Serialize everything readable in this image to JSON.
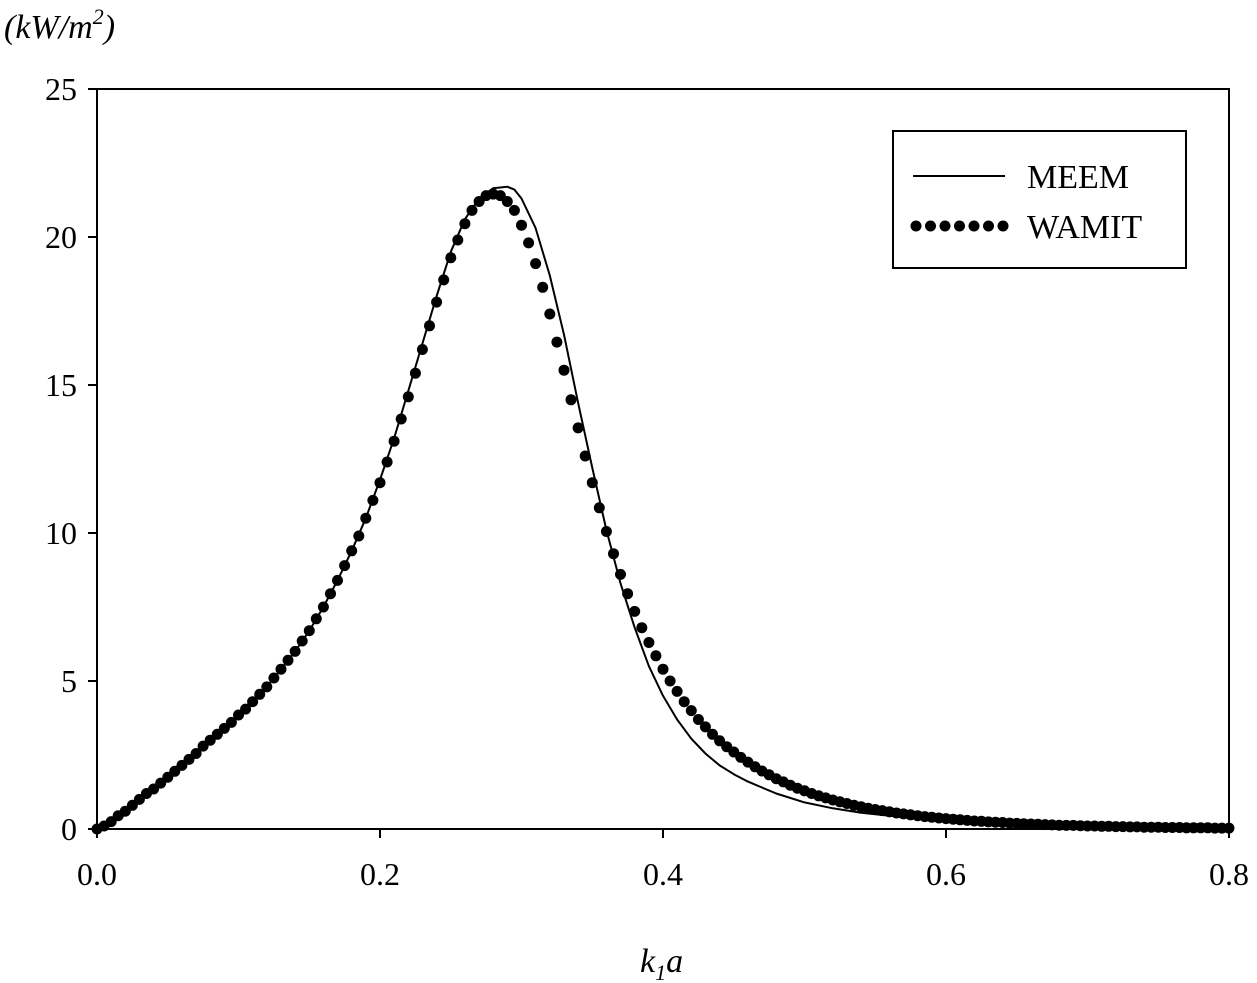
{
  "chart_data": {
    "type": "line",
    "xlabel": {
      "base": "k",
      "sub": "1",
      "tail": "a"
    },
    "ylabel": {
      "text": "(kW/m",
      "sup": "2",
      "close": ")"
    },
    "xlim": [
      0.0,
      0.8
    ],
    "ylim": [
      0,
      25
    ],
    "xticks": [
      "0.0",
      "0.2",
      "0.4",
      "0.6",
      "0.8"
    ],
    "yticks": [
      "0",
      "5",
      "10",
      "15",
      "20",
      "25"
    ],
    "grid": false,
    "legend_position": "top-right",
    "series": [
      {
        "name": "MEEM",
        "style": "solid-line",
        "x": [
          0.0,
          0.01,
          0.02,
          0.03,
          0.04,
          0.05,
          0.06,
          0.07,
          0.08,
          0.09,
          0.1,
          0.11,
          0.12,
          0.13,
          0.14,
          0.15,
          0.16,
          0.17,
          0.18,
          0.19,
          0.2,
          0.21,
          0.22,
          0.23,
          0.24,
          0.25,
          0.26,
          0.27,
          0.28,
          0.29,
          0.295,
          0.3,
          0.31,
          0.32,
          0.33,
          0.34,
          0.35,
          0.36,
          0.37,
          0.38,
          0.39,
          0.4,
          0.41,
          0.42,
          0.43,
          0.44,
          0.45,
          0.46,
          0.48,
          0.5,
          0.52,
          0.54,
          0.56,
          0.58,
          0.6,
          0.62,
          0.64,
          0.66,
          0.68,
          0.7,
          0.72,
          0.74,
          0.76,
          0.78,
          0.8
        ],
        "y": [
          0.0,
          0.25,
          0.6,
          1.0,
          1.35,
          1.75,
          2.15,
          2.55,
          3.0,
          3.4,
          3.85,
          4.3,
          4.8,
          5.4,
          6.0,
          6.7,
          7.5,
          8.4,
          9.4,
          10.5,
          11.8,
          13.2,
          14.8,
          16.4,
          18.0,
          19.5,
          20.6,
          21.3,
          21.65,
          21.7,
          21.6,
          21.3,
          20.3,
          18.7,
          16.7,
          14.4,
          12.2,
          10.1,
          8.3,
          6.8,
          5.5,
          4.5,
          3.7,
          3.05,
          2.55,
          2.15,
          1.85,
          1.6,
          1.2,
          0.9,
          0.7,
          0.55,
          0.45,
          0.35,
          0.3,
          0.25,
          0.2,
          0.16,
          0.13,
          0.1,
          0.08,
          0.06,
          0.05,
          0.04,
          0.03
        ]
      },
      {
        "name": "WAMIT",
        "style": "dotted",
        "x": [
          0.0,
          0.005,
          0.01,
          0.015,
          0.02,
          0.025,
          0.03,
          0.035,
          0.04,
          0.045,
          0.05,
          0.055,
          0.06,
          0.065,
          0.07,
          0.075,
          0.08,
          0.085,
          0.09,
          0.095,
          0.1,
          0.105,
          0.11,
          0.115,
          0.12,
          0.125,
          0.13,
          0.135,
          0.14,
          0.145,
          0.15,
          0.155,
          0.16,
          0.165,
          0.17,
          0.175,
          0.18,
          0.185,
          0.19,
          0.195,
          0.2,
          0.205,
          0.21,
          0.215,
          0.22,
          0.225,
          0.23,
          0.235,
          0.24,
          0.245,
          0.25,
          0.255,
          0.26,
          0.265,
          0.27,
          0.275,
          0.28,
          0.285,
          0.29,
          0.295,
          0.3,
          0.305,
          0.31,
          0.315,
          0.32,
          0.325,
          0.33,
          0.335,
          0.34,
          0.345,
          0.35,
          0.355,
          0.36,
          0.365,
          0.37,
          0.375,
          0.38,
          0.385,
          0.39,
          0.395,
          0.4,
          0.405,
          0.41,
          0.415,
          0.42,
          0.425,
          0.43,
          0.435,
          0.44,
          0.445,
          0.45,
          0.455,
          0.46,
          0.465,
          0.47,
          0.475,
          0.48,
          0.485,
          0.49,
          0.495,
          0.5,
          0.505,
          0.51,
          0.515,
          0.52,
          0.525,
          0.53,
          0.535,
          0.54,
          0.545,
          0.55,
          0.555,
          0.56,
          0.565,
          0.57,
          0.575,
          0.58,
          0.585,
          0.59,
          0.595,
          0.6,
          0.605,
          0.61,
          0.615,
          0.62,
          0.625,
          0.63,
          0.635,
          0.64,
          0.645,
          0.65,
          0.655,
          0.66,
          0.665,
          0.67,
          0.675,
          0.68,
          0.685,
          0.69,
          0.695,
          0.7,
          0.705,
          0.71,
          0.715,
          0.72,
          0.725,
          0.73,
          0.735,
          0.74,
          0.745,
          0.75,
          0.755,
          0.76,
          0.765,
          0.77,
          0.775,
          0.78,
          0.785,
          0.79,
          0.795,
          0.8
        ],
        "y": [
          0.0,
          0.1,
          0.25,
          0.45,
          0.6,
          0.8,
          1.0,
          1.2,
          1.35,
          1.55,
          1.75,
          1.95,
          2.15,
          2.35,
          2.55,
          2.8,
          3.0,
          3.2,
          3.4,
          3.6,
          3.85,
          4.05,
          4.3,
          4.55,
          4.8,
          5.1,
          5.4,
          5.7,
          6.0,
          6.35,
          6.7,
          7.1,
          7.5,
          7.95,
          8.4,
          8.9,
          9.4,
          9.9,
          10.5,
          11.1,
          11.7,
          12.4,
          13.1,
          13.85,
          14.6,
          15.4,
          16.2,
          17.0,
          17.8,
          18.55,
          19.3,
          19.9,
          20.45,
          20.9,
          21.2,
          21.4,
          21.45,
          21.4,
          21.2,
          20.9,
          20.4,
          19.8,
          19.1,
          18.3,
          17.4,
          16.45,
          15.5,
          14.5,
          13.55,
          12.6,
          11.7,
          10.85,
          10.05,
          9.3,
          8.6,
          7.95,
          7.35,
          6.8,
          6.3,
          5.85,
          5.4,
          5.0,
          4.65,
          4.3,
          4.0,
          3.7,
          3.45,
          3.2,
          2.98,
          2.78,
          2.6,
          2.42,
          2.26,
          2.1,
          1.96,
          1.83,
          1.7,
          1.59,
          1.48,
          1.38,
          1.29,
          1.2,
          1.12,
          1.05,
          0.98,
          0.92,
          0.86,
          0.8,
          0.75,
          0.7,
          0.66,
          0.62,
          0.58,
          0.54,
          0.51,
          0.48,
          0.45,
          0.42,
          0.4,
          0.37,
          0.35,
          0.33,
          0.31,
          0.29,
          0.27,
          0.26,
          0.24,
          0.23,
          0.22,
          0.2,
          0.19,
          0.18,
          0.17,
          0.16,
          0.15,
          0.14,
          0.13,
          0.12,
          0.12,
          0.11,
          0.1,
          0.1,
          0.09,
          0.09,
          0.08,
          0.08,
          0.07,
          0.07,
          0.06,
          0.06,
          0.06,
          0.05,
          0.05,
          0.05,
          0.04,
          0.04,
          0.04,
          0.04,
          0.03,
          0.03,
          0.03
        ]
      }
    ]
  }
}
